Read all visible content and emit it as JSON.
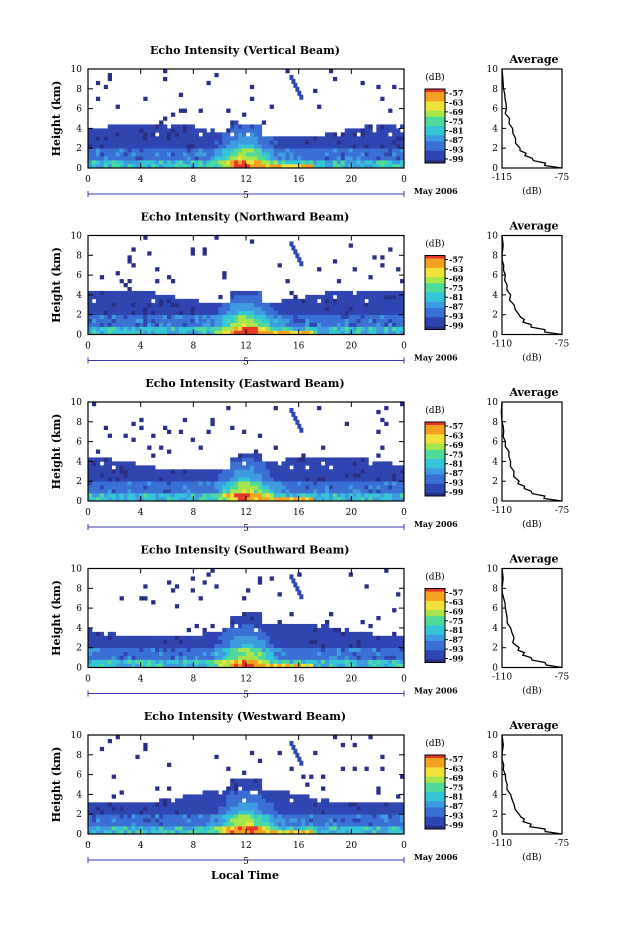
{
  "figure": {
    "xlabel": "Local Time",
    "colors": {
      "low": "#2a2f86",
      "mid": "#33c6d6",
      "high": "#e8352a",
      "axis": "#000000",
      "marker": "#3a3ab0"
    }
  },
  "chart_data": [
    {
      "type": "heatmap",
      "title": "Echo Intensity (Vertical Beam)",
      "ylabel": "Height (km)",
      "x_ticks": [
        "0",
        "4",
        "8",
        "12",
        "16",
        "20",
        "0"
      ],
      "y_ticks": [
        "0",
        "2",
        "4",
        "6",
        "8",
        "10"
      ],
      "xlim": [
        0,
        24
      ],
      "ylim": [
        0,
        10
      ],
      "date_marker": "5",
      "date_label": "May 2006",
      "colorbar": {
        "label": "(dB)",
        "ticks": [
          "-57",
          "-63",
          "-69",
          "-75",
          "-81",
          "-87",
          "-93",
          "-99"
        ]
      },
      "profile": {
        "title": "Average",
        "xlabel": "(dB)",
        "x_ticks": [
          "-115",
          "-75"
        ],
        "xlim": [
          -115,
          -75
        ],
        "y_ticks": [
          "0",
          "2",
          "4",
          "6",
          "8",
          "10"
        ],
        "x": [
          -75,
          -86,
          -95,
          -99,
          -103,
          -106,
          -108,
          -110,
          -112,
          -113,
          -114,
          -115
        ],
        "y": [
          0,
          0.5,
          1,
          1.5,
          2,
          3,
          4,
          5,
          6,
          7,
          8,
          10
        ]
      }
    },
    {
      "type": "heatmap",
      "title": "Echo Intensity (Northward Beam)",
      "ylabel": "Height (km)",
      "x_ticks": [
        "0",
        "4",
        "8",
        "12",
        "16",
        "20",
        "0"
      ],
      "y_ticks": [
        "0",
        "2",
        "4",
        "6",
        "8",
        "10"
      ],
      "xlim": [
        0,
        24
      ],
      "ylim": [
        0,
        10
      ],
      "date_marker": "5",
      "date_label": "May 2006",
      "colorbar": {
        "label": "(dB)",
        "ticks": [
          "-57",
          "-63",
          "-69",
          "-75",
          "-81",
          "-87",
          "-93",
          "-99"
        ]
      },
      "profile": {
        "title": "Average",
        "xlabel": "(dB)",
        "x_ticks": [
          "-110",
          "-75"
        ],
        "xlim": [
          -110,
          -75
        ],
        "y_ticks": [
          "0",
          "2",
          "4",
          "6",
          "8",
          "10"
        ],
        "x": [
          -75,
          -85,
          -93,
          -97,
          -100,
          -103,
          -105,
          -107,
          -108,
          -109,
          -110,
          -110
        ],
        "y": [
          0,
          0.5,
          1,
          1.5,
          2,
          3,
          4,
          5,
          6,
          7,
          8,
          10
        ]
      }
    },
    {
      "type": "heatmap",
      "title": "Echo Intensity (Eastward Beam)",
      "ylabel": "Height (km)",
      "x_ticks": [
        "0",
        "4",
        "8",
        "12",
        "16",
        "20",
        "0"
      ],
      "y_ticks": [
        "0",
        "2",
        "4",
        "6",
        "8",
        "10"
      ],
      "xlim": [
        0,
        24
      ],
      "ylim": [
        0,
        10
      ],
      "date_marker": "5",
      "date_label": "May 2006",
      "colorbar": {
        "label": "(dB)",
        "ticks": [
          "-57",
          "-63",
          "-69",
          "-75",
          "-81",
          "-87",
          "-93",
          "-99"
        ]
      },
      "profile": {
        "title": "Average",
        "xlabel": "(dB)",
        "x_ticks": [
          "-110",
          "-75"
        ],
        "xlim": [
          -110,
          -75
        ],
        "y_ticks": [
          "0",
          "2",
          "4",
          "6",
          "8",
          "10"
        ],
        "x": [
          -75,
          -85,
          -93,
          -97,
          -100,
          -103,
          -105,
          -106,
          -108,
          -109,
          -110,
          -110
        ],
        "y": [
          0,
          0.5,
          1,
          1.5,
          2,
          3,
          4,
          5,
          6,
          7,
          8,
          10
        ]
      }
    },
    {
      "type": "heatmap",
      "title": "Echo Intensity (Southward Beam)",
      "ylabel": "Height (km)",
      "x_ticks": [
        "0",
        "4",
        "8",
        "12",
        "16",
        "20",
        "0"
      ],
      "y_ticks": [
        "0",
        "2",
        "4",
        "6",
        "8",
        "10"
      ],
      "xlim": [
        0,
        24
      ],
      "ylim": [
        0,
        10
      ],
      "date_marker": "5",
      "date_label": "May 2006",
      "colorbar": {
        "label": "(dB)",
        "ticks": [
          "-57",
          "-63",
          "-69",
          "-75",
          "-81",
          "-87",
          "-93",
          "-99"
        ]
      },
      "profile": {
        "title": "Average",
        "xlabel": "(dB)",
        "x_ticks": [
          "-110",
          "-75"
        ],
        "xlim": [
          -110,
          -75
        ],
        "y_ticks": [
          "0",
          "2",
          "4",
          "6",
          "8",
          "10"
        ],
        "x": [
          -75,
          -85,
          -93,
          -97,
          -100,
          -103,
          -105,
          -107,
          -108,
          -109,
          -110,
          -110
        ],
        "y": [
          0,
          0.5,
          1,
          1.5,
          2,
          3,
          4,
          5,
          6,
          7,
          8,
          10
        ]
      }
    },
    {
      "type": "heatmap",
      "title": "Echo Intensity (Westward Beam)",
      "ylabel": "Height (km)",
      "x_ticks": [
        "0",
        "4",
        "8",
        "12",
        "16",
        "20",
        "0"
      ],
      "y_ticks": [
        "0",
        "2",
        "4",
        "6",
        "8",
        "10"
      ],
      "xlim": [
        0,
        24
      ],
      "ylim": [
        0,
        10
      ],
      "date_marker": "5",
      "date_label": "May 2006",
      "colorbar": {
        "label": "(dB)",
        "ticks": [
          "-57",
          "-63",
          "-69",
          "-75",
          "-81",
          "-87",
          "-93",
          "-99"
        ]
      },
      "profile": {
        "title": "Average",
        "xlabel": "(dB)",
        "x_ticks": [
          "-110",
          "-75"
        ],
        "xlim": [
          -110,
          -75
        ],
        "y_ticks": [
          "0",
          "2",
          "4",
          "6",
          "8",
          "10"
        ],
        "x": [
          -75,
          -85,
          -93,
          -97,
          -100,
          -103,
          -105,
          -107,
          -108,
          -109,
          -110,
          -110
        ],
        "y": [
          0,
          0.5,
          1,
          1.5,
          2,
          3,
          4,
          5,
          6,
          7,
          8,
          10
        ]
      }
    }
  ]
}
